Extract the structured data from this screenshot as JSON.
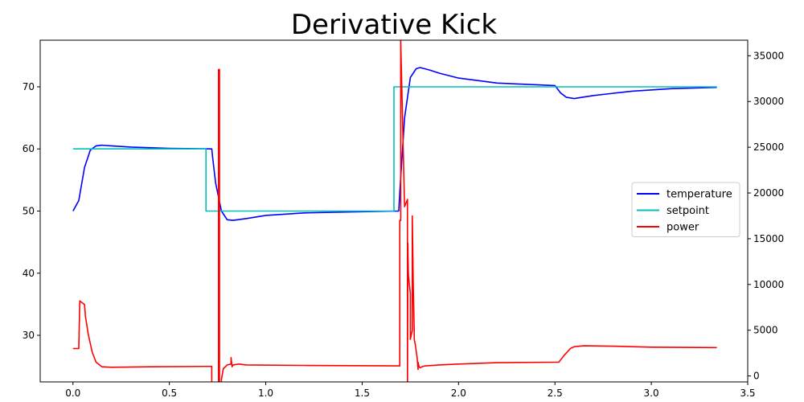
{
  "chart_data": {
    "type": "line",
    "title": "Derivative Kick",
    "xlabel": "",
    "ylabel": "",
    "y2label": "",
    "xlim": [
      -0.17,
      3.5
    ],
    "ylim": [
      22.5,
      77.5
    ],
    "y2lim": [
      -650,
      36700
    ],
    "x_ticks": [
      {
        "value": 0.0,
        "label": "0.0"
      },
      {
        "value": 0.5,
        "label": "0.5"
      },
      {
        "value": 1.0,
        "label": "1.0"
      },
      {
        "value": 1.5,
        "label": "1.5"
      },
      {
        "value": 2.0,
        "label": "2.0"
      },
      {
        "value": 2.5,
        "label": "2.5"
      },
      {
        "value": 3.0,
        "label": "3.0"
      },
      {
        "value": 3.5,
        "label": "3.5"
      }
    ],
    "y_ticks": [
      {
        "value": 30,
        "label": "30"
      },
      {
        "value": 40,
        "label": "40"
      },
      {
        "value": 50,
        "label": "50"
      },
      {
        "value": 60,
        "label": "60"
      },
      {
        "value": 70,
        "label": "70"
      }
    ],
    "y2_ticks": [
      {
        "value": 0,
        "label": "0"
      },
      {
        "value": 5000,
        "label": "5000"
      },
      {
        "value": 10000,
        "label": "10000"
      },
      {
        "value": 15000,
        "label": "15000"
      },
      {
        "value": 20000,
        "label": "20000"
      },
      {
        "value": 25000,
        "label": "25000"
      },
      {
        "value": 30000,
        "label": "30000"
      },
      {
        "value": 35000,
        "label": "35000"
      }
    ],
    "grid": false,
    "legend": {
      "placement": "center-right",
      "entries": [
        {
          "name": "temperature",
          "color": "#0000ff"
        },
        {
          "name": "setpoint",
          "color": "#00bfbf"
        },
        {
          "name": "power",
          "color": "#ff0000"
        }
      ]
    },
    "series": [
      {
        "name": "temperature",
        "axis": "left",
        "color": "#0000ff",
        "x": [
          0.0,
          0.03,
          0.06,
          0.09,
          0.12,
          0.15,
          0.2,
          0.3,
          0.5,
          0.72,
          0.725,
          0.74,
          0.77,
          0.8,
          0.83,
          0.9,
          1.0,
          1.2,
          1.5,
          1.69,
          1.695,
          1.72,
          1.75,
          1.78,
          1.8,
          1.85,
          1.9,
          2.0,
          2.2,
          2.5,
          2.53,
          2.56,
          2.6,
          2.7,
          2.9,
          3.1,
          3.34
        ],
        "y": [
          50.0,
          51.7,
          57.0,
          59.8,
          60.5,
          60.6,
          60.5,
          60.3,
          60.1,
          60.0,
          58.5,
          54.5,
          50.0,
          48.6,
          48.5,
          48.8,
          49.3,
          49.7,
          49.9,
          50.0,
          53.0,
          65.0,
          71.5,
          72.9,
          73.1,
          72.7,
          72.2,
          71.4,
          70.6,
          70.2,
          69.0,
          68.3,
          68.1,
          68.6,
          69.3,
          69.7,
          69.9
        ]
      },
      {
        "name": "setpoint",
        "axis": "left",
        "color": "#00bfbf",
        "x": [
          0.0,
          0.69,
          0.69,
          1.665,
          1.665,
          3.34
        ],
        "y": [
          60,
          60,
          50,
          50,
          70,
          70
        ]
      },
      {
        "name": "power",
        "axis": "right",
        "color": "#ff0000",
        "x": [
          0.0,
          0.03,
          0.03,
          0.035,
          0.06,
          0.065,
          0.08,
          0.1,
          0.12,
          0.15,
          0.2,
          0.4,
          0.72,
          0.72,
          0.72,
          0.725,
          0.75,
          0.755,
          0.755,
          0.76,
          0.76,
          0.77,
          0.77,
          0.78,
          0.8,
          0.82,
          0.82,
          0.825,
          0.83,
          0.86,
          0.9,
          1.2,
          1.69,
          1.695,
          1.695,
          1.7,
          1.7,
          1.72,
          1.735,
          1.735,
          1.737,
          1.738,
          1.74,
          1.75,
          1.75,
          1.76,
          1.76,
          1.765,
          1.77,
          1.77,
          1.775,
          1.785,
          1.79,
          1.79,
          1.795,
          1.8,
          1.81,
          1.815,
          1.83,
          1.9,
          2.0,
          2.2,
          2.5,
          2.52,
          2.55,
          2.58,
          2.6,
          2.65,
          2.8,
          3.0,
          3.34
        ],
        "y": [
          3000,
          3000,
          3000,
          8200,
          7800,
          6500,
          4500,
          2600,
          1500,
          1000,
          950,
          1000,
          1050,
          1050,
          -1800,
          -1800,
          -1800,
          -1800,
          33500,
          33500,
          -1800,
          -1800,
          -400,
          800,
          1200,
          1300,
          2000,
          1000,
          1200,
          1300,
          1200,
          1150,
          1100,
          1100,
          17000,
          17000,
          36700,
          18500,
          19300,
          -1800,
          14500,
          13000,
          11000,
          9000,
          4000,
          5000,
          17500,
          10000,
          5000,
          4000,
          3500,
          2000,
          700,
          1500,
          1000,
          900,
          1000,
          1050,
          1100,
          1200,
          1300,
          1450,
          1500,
          1500,
          2300,
          3000,
          3200,
          3300,
          3250,
          3150,
          3100
        ]
      }
    ]
  }
}
